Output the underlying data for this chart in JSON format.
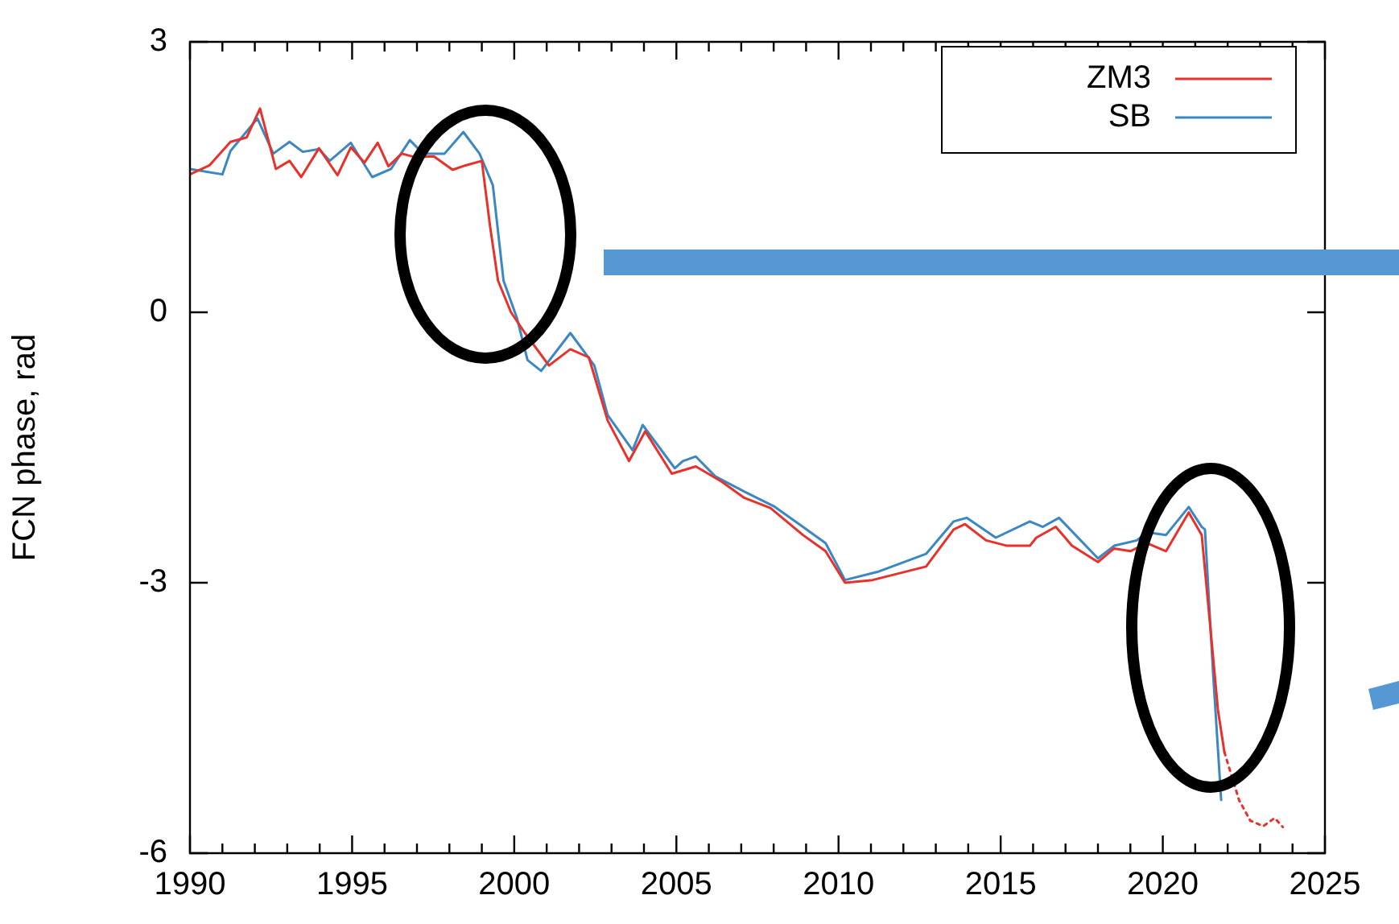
{
  "chart_data": {
    "type": "line",
    "ylabel": "FCN phase, rad",
    "xlim": [
      1990,
      2025
    ],
    "ylim": [
      -6,
      3
    ],
    "xticks": [
      1990,
      {
        "value": 1991,
        "label": null
      },
      {
        "value": 1992,
        "label": null
      },
      {
        "value": 1993,
        "label": null
      },
      {
        "value": 1994,
        "label": null
      },
      1995,
      {
        "value": 1996,
        "label": null
      },
      {
        "value": 1997,
        "label": null
      },
      {
        "value": 1998,
        "label": null
      },
      {
        "value": 1999,
        "label": null
      },
      2000,
      {
        "value": 2001,
        "label": null
      },
      {
        "value": 2002,
        "label": null
      },
      {
        "value": 2003,
        "label": null
      },
      {
        "value": 2004,
        "label": null
      },
      2005,
      {
        "value": 2006,
        "label": null
      },
      {
        "value": 2007,
        "label": null
      },
      {
        "value": 2008,
        "label": null
      },
      {
        "value": 2009,
        "label": null
      },
      2010,
      {
        "value": 2011,
        "label": null
      },
      {
        "value": 2012,
        "label": null
      },
      {
        "value": 2013,
        "label": null
      },
      {
        "value": 2014,
        "label": null
      },
      2015,
      {
        "value": 2016,
        "label": null
      },
      {
        "value": 2017,
        "label": null
      },
      {
        "value": 2018,
        "label": null
      },
      {
        "value": 2019,
        "label": null
      },
      2020,
      {
        "value": 2021,
        "label": null
      },
      {
        "value": 2022,
        "label": null
      },
      {
        "value": 2023,
        "label": null
      },
      {
        "value": 2024,
        "label": null
      },
      2025
    ],
    "yticks": [
      -6,
      -3,
      0,
      3
    ],
    "grid": false,
    "legend": "top right",
    "marker": "none",
    "series": [
      {
        "name": "ZM3",
        "color": "#e8312a",
        "line_style": "solid",
        "x": [
          1990.0,
          1990.6,
          1991.25,
          1991.75,
          1992.16,
          1992.65,
          1993.07,
          1993.43,
          1993.98,
          1994.55,
          1994.96,
          1995.38,
          1995.79,
          1996.12,
          1996.53,
          1996.95,
          1997.52,
          1998.1,
          1998.5,
          1999.0,
          1999.26,
          1999.5,
          1999.9,
          2000.33,
          2001.07,
          2001.73,
          2002.3,
          2002.88,
          2003.54,
          2004.04,
          2004.86,
          2005.6,
          2006.4,
          2007.1,
          2007.9,
          2008.9,
          2009.6,
          2010.2,
          2011.05,
          2012.7,
          2013.55,
          2013.9,
          2014.55,
          2015.2,
          2015.9,
          2016.1,
          2016.7,
          2017.2,
          2018.0,
          2018.5,
          2019.0,
          2019.5,
          2020.1,
          2020.8,
          2021.2,
          2021.55,
          2021.7,
          2021.9
        ],
        "values": [
          1.53,
          1.63,
          1.89,
          1.94,
          2.26,
          1.59,
          1.68,
          1.5,
          1.82,
          1.52,
          1.83,
          1.66,
          1.88,
          1.62,
          1.76,
          1.72,
          1.73,
          1.58,
          1.63,
          1.68,
          0.94,
          0.35,
          0.0,
          -0.23,
          -0.59,
          -0.41,
          -0.5,
          -1.2,
          -1.65,
          -1.32,
          -1.79,
          -1.71,
          -1.88,
          -2.06,
          -2.17,
          -2.47,
          -2.65,
          -3.0,
          -2.97,
          -2.82,
          -2.41,
          -2.35,
          -2.53,
          -2.59,
          -2.59,
          -2.5,
          -2.38,
          -2.59,
          -2.77,
          -2.62,
          -2.65,
          -2.56,
          -2.65,
          -2.22,
          -2.47,
          -3.82,
          -4.41,
          -4.88
        ]
      },
      {
        "name": "SB",
        "color": "#3a87c4",
        "line_style": "solid",
        "x": [
          1990.0,
          1991.0,
          1991.25,
          1992.08,
          1992.57,
          1993.07,
          1993.48,
          1993.98,
          1994.31,
          1994.96,
          1995.62,
          1996.2,
          1996.78,
          1997.19,
          1997.85,
          1998.43,
          1998.93,
          1999.34,
          1999.67,
          2000.08,
          2000.41,
          2000.83,
          2001.73,
          2002.47,
          2002.88,
          2003.65,
          2003.96,
          2004.95,
          2005.2,
          2005.6,
          2006.2,
          2007.1,
          2008.0,
          2008.9,
          2009.6,
          2010.2,
          2011.2,
          2012.7,
          2013.55,
          2013.95,
          2014.85,
          2015.9,
          2016.3,
          2016.8,
          2018.0,
          2018.5,
          2019.2,
          2019.5,
          2020.1,
          2020.8,
          2021.2,
          2021.3,
          2021.55,
          2021.8
        ],
        "values": [
          1.59,
          1.53,
          1.79,
          2.15,
          1.76,
          1.89,
          1.78,
          1.81,
          1.68,
          1.88,
          1.5,
          1.59,
          1.91,
          1.76,
          1.76,
          2.0,
          1.76,
          1.41,
          0.35,
          -0.06,
          -0.53,
          -0.65,
          -0.23,
          -0.59,
          -1.14,
          -1.53,
          -1.25,
          -1.73,
          -1.65,
          -1.6,
          -1.82,
          -1.99,
          -2.15,
          -2.38,
          -2.56,
          -2.97,
          -2.88,
          -2.68,
          -2.32,
          -2.28,
          -2.5,
          -2.32,
          -2.38,
          -2.28,
          -2.73,
          -2.59,
          -2.53,
          -2.44,
          -2.47,
          -2.16,
          -2.38,
          -2.41,
          -4.0,
          -5.41
        ]
      },
      {
        "color": "#e8312a",
        "line_style": "dotted",
        "x": [
          2021.9,
          2022.35,
          2022.7,
          2023.1,
          2023.45,
          2023.7
        ],
        "values": [
          -4.88,
          -5.41,
          -5.64,
          -5.7,
          -5.61,
          -5.71
        ]
      }
    ]
  }
}
